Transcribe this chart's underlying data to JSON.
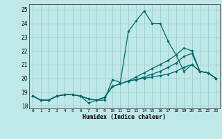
{
  "xlabel": "Humidex (Indice chaleur)",
  "xlim": [
    -0.5,
    23.5
  ],
  "ylim": [
    17.8,
    25.4
  ],
  "yticks": [
    18,
    19,
    20,
    21,
    22,
    23,
    24,
    25
  ],
  "xticks": [
    0,
    1,
    2,
    3,
    4,
    5,
    6,
    7,
    8,
    9,
    10,
    11,
    12,
    13,
    14,
    15,
    16,
    17,
    18,
    19,
    20,
    21,
    22,
    23
  ],
  "bg_color": "#c0e8e8",
  "grid_color": "#96c8c8",
  "line_color": "#006868",
  "lines": [
    [
      18.7,
      18.4,
      18.4,
      18.7,
      18.8,
      18.8,
      18.7,
      18.2,
      18.4,
      18.4,
      19.9,
      19.7,
      23.4,
      24.2,
      24.9,
      24.0,
      24.0,
      22.7,
      21.7,
      20.5,
      21.0,
      20.5,
      20.4,
      20.0
    ],
    [
      18.7,
      18.4,
      18.4,
      18.7,
      18.8,
      18.8,
      18.7,
      18.5,
      18.4,
      18.6,
      19.4,
      19.6,
      19.8,
      19.9,
      20.0,
      20.1,
      20.2,
      20.3,
      20.5,
      20.8,
      21.0,
      20.5,
      20.4,
      20.0
    ],
    [
      18.7,
      18.4,
      18.4,
      18.7,
      18.8,
      18.8,
      18.7,
      18.5,
      18.4,
      18.6,
      19.4,
      19.6,
      19.8,
      19.9,
      20.1,
      20.3,
      20.5,
      20.8,
      21.1,
      21.6,
      21.8,
      20.5,
      20.4,
      20.0
    ],
    [
      18.7,
      18.4,
      18.4,
      18.7,
      18.8,
      18.8,
      18.7,
      18.5,
      18.4,
      18.6,
      19.4,
      19.6,
      19.8,
      20.1,
      20.4,
      20.7,
      21.0,
      21.3,
      21.7,
      22.2,
      22.0,
      20.5,
      20.4,
      20.0
    ]
  ]
}
